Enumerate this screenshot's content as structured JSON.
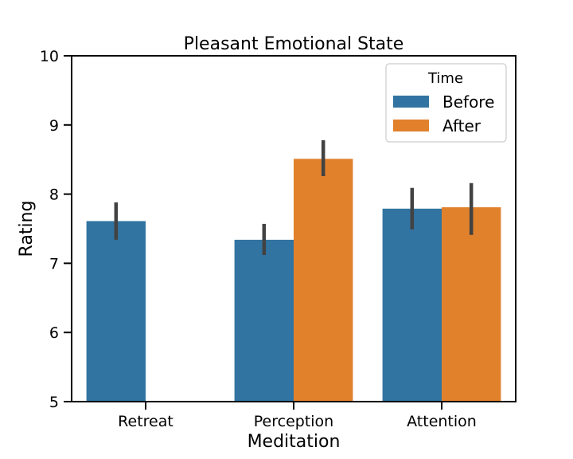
{
  "chart_data": {
    "type": "bar",
    "title": "Pleasant Emotional State",
    "xlabel": "Meditation",
    "ylabel": "Rating",
    "ylim": [
      5,
      10
    ],
    "yticks": [
      "5",
      "6",
      "7",
      "8",
      "9",
      "10"
    ],
    "categories": [
      "Retreat",
      "Perception",
      "Attention"
    ],
    "legend": {
      "title": "Time",
      "placement": "top-right"
    },
    "grid": false,
    "series": [
      {
        "name": "Before",
        "color": "#3274a1",
        "values": [
          7.61,
          7.34,
          7.79
        ],
        "ci_low": [
          7.34,
          7.12,
          7.49
        ],
        "ci_high": [
          7.88,
          7.57,
          8.09
        ]
      },
      {
        "name": "After",
        "color": "#e1812c",
        "values": [
          null,
          8.51,
          7.81
        ],
        "ci_low": [
          null,
          8.26,
          7.41
        ],
        "ci_high": [
          null,
          8.78,
          8.16
        ]
      }
    ],
    "errorbar_color": "#424242"
  }
}
